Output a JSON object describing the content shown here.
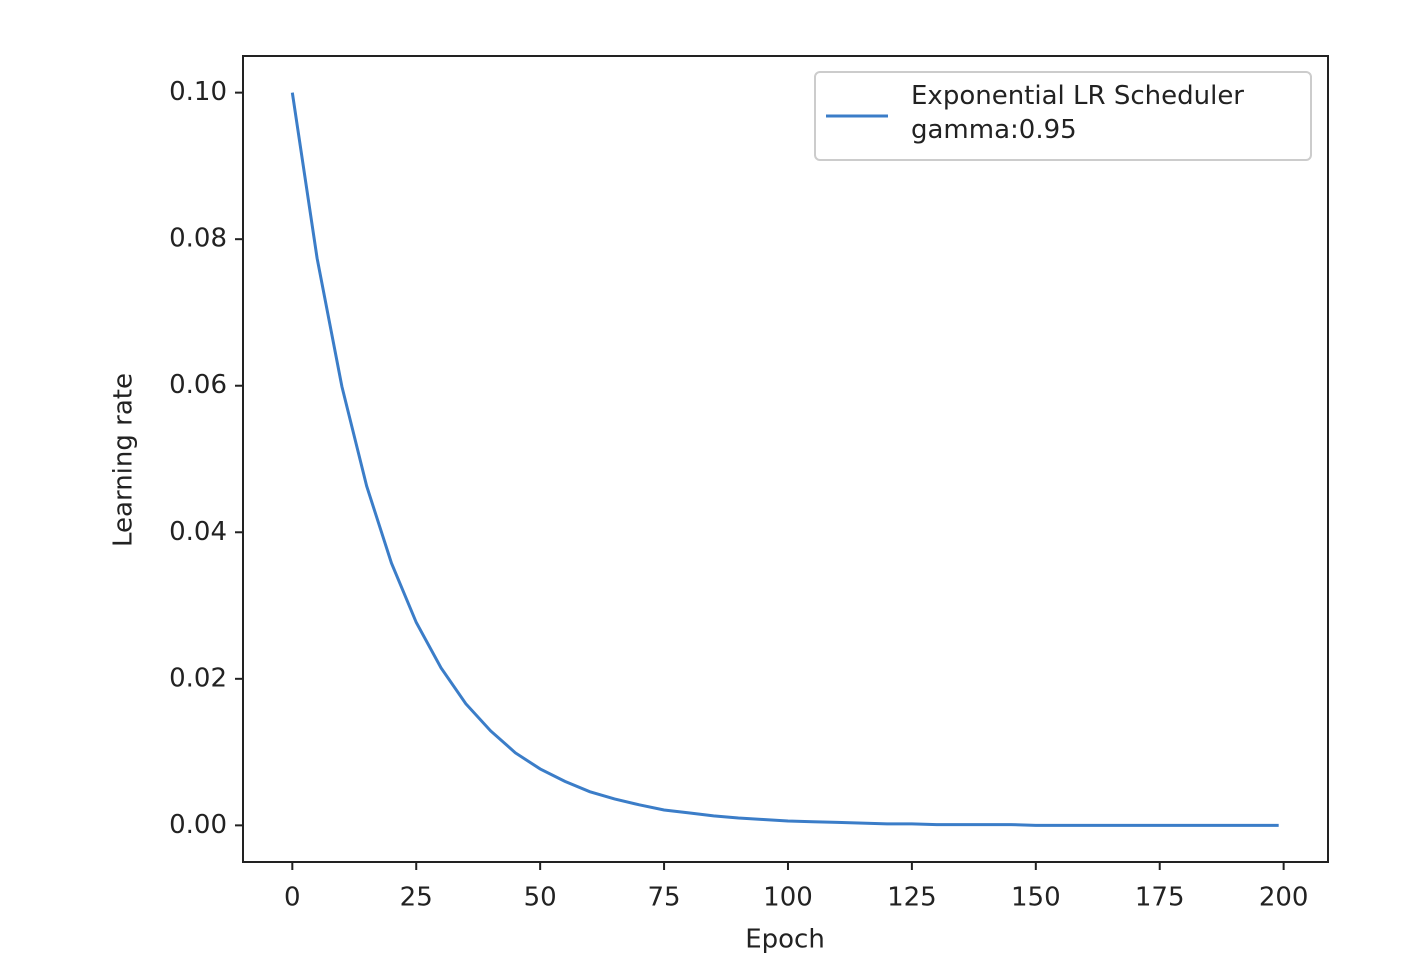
{
  "chart_data": {
    "type": "line",
    "xlabel": "Epoch",
    "ylabel": "Learning rate",
    "x": [
      0,
      5,
      10,
      15,
      20,
      25,
      30,
      35,
      40,
      45,
      50,
      55,
      60,
      65,
      70,
      75,
      80,
      85,
      90,
      95,
      100,
      105,
      110,
      115,
      120,
      125,
      130,
      135,
      140,
      145,
      150,
      155,
      160,
      165,
      170,
      175,
      180,
      185,
      190,
      195,
      199
    ],
    "series": [
      {
        "name": "Exponential LR Scheduler\ngamma:0.95",
        "color": "#3b7dc8",
        "values": [
          0.1,
          0.0774,
          0.0599,
          0.0463,
          0.0358,
          0.0277,
          0.0215,
          0.0166,
          0.0129,
          0.0099,
          0.0077,
          0.006,
          0.0046,
          0.0036,
          0.0028,
          0.0021,
          0.0017,
          0.0013,
          0.001,
          0.0008,
          0.0006,
          0.0005,
          0.0004,
          0.0003,
          0.0002,
          0.0002,
          0.0001,
          0.0001,
          0.0001,
          0.0001,
          0,
          0,
          0,
          0,
          0,
          0,
          0,
          0,
          0,
          0,
          0
        ]
      }
    ],
    "xlim": [
      -9.95,
      208.95
    ],
    "ylim": [
      -0.005,
      0.105
    ],
    "xticks": [
      0,
      25,
      50,
      75,
      100,
      125,
      150,
      175,
      200
    ],
    "yticks": [
      {
        "value": 0,
        "label": "0.00"
      },
      {
        "value": 0.02,
        "label": "0.02"
      },
      {
        "value": 0.04,
        "label": "0.04"
      },
      {
        "value": 0.06,
        "label": "0.06"
      },
      {
        "value": 0.08,
        "label": "0.08"
      },
      {
        "value": 0.1,
        "label": "0.10"
      }
    ],
    "legend": "upper right",
    "grid": false
  }
}
